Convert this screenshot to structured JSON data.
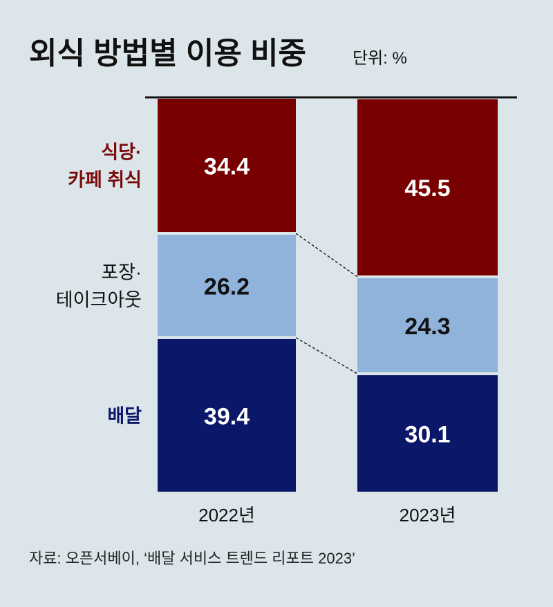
{
  "chart_data": {
    "type": "bar",
    "stacked": true,
    "title": "외식 방법별 이용 비중",
    "unit_label": "단위: %",
    "categories": [
      "2022년",
      "2023년"
    ],
    "series": [
      {
        "name": "배달",
        "name_lines": [
          "배달"
        ],
        "color": "#0b1769",
        "label_color": "#0b1769",
        "text_color": "#ffffff",
        "values": [
          39.4,
          30.1
        ],
        "labels": [
          "39.4",
          "30.1"
        ]
      },
      {
        "name": "포장·테이크아웃",
        "name_lines": [
          "포장·",
          "테이크아웃"
        ],
        "color": "#8fb3da",
        "label_color": "#111111",
        "text_color": "#111111",
        "values": [
          26.2,
          24.3
        ],
        "labels": [
          "26.2",
          "24.3"
        ]
      },
      {
        "name": "식당·카페 취식",
        "name_lines": [
          "식당·",
          "카페 취식"
        ],
        "color": "#780000",
        "label_color": "#7a0a0a",
        "text_color": "#ffffff",
        "values": [
          34.4,
          45.5
        ],
        "labels": [
          "34.4",
          "45.5"
        ]
      }
    ],
    "ylim": [
      0,
      100
    ],
    "source": "자료: 오픈서베이, ‘배달 서비스 트렌드 리포트 2023’"
  }
}
